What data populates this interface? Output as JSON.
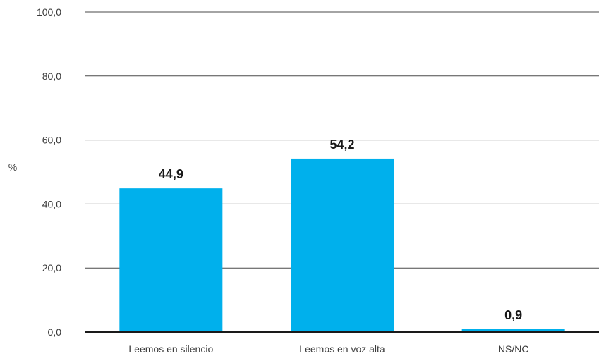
{
  "chart_data": {
    "type": "bar",
    "categories": [
      "Leemos en silencio",
      "Leemos en voz alta",
      "NS/NC"
    ],
    "values": [
      44.9,
      54.2,
      0.9
    ],
    "value_labels": [
      "44,9",
      "54,2",
      "0,9"
    ],
    "title": "",
    "xlabel": "",
    "ylabel": "%",
    "ylim": [
      0,
      100
    ],
    "yticks": [
      0,
      20,
      40,
      60,
      80,
      100
    ],
    "ytick_labels": [
      "0,0",
      "20,0",
      "40,0",
      "60,0",
      "80,0",
      "100,0"
    ],
    "grid": true,
    "bar_color": "#00b0ec",
    "grid_color": "#4a4a4a",
    "axis_color": "#1a1a1a"
  }
}
